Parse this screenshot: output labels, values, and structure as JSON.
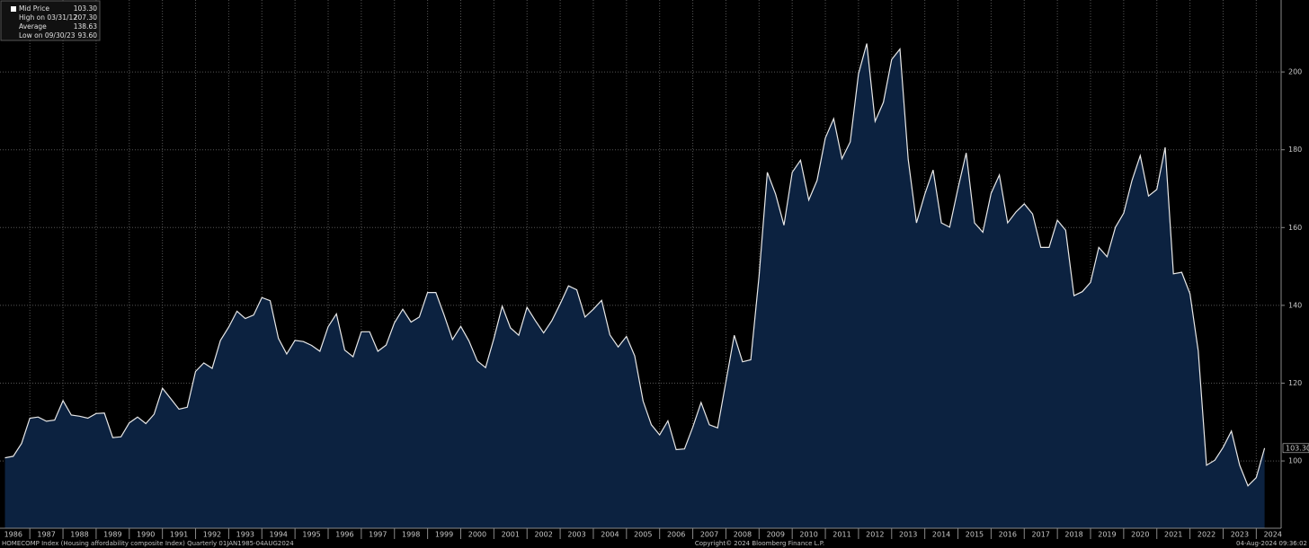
{
  "chart_data": {
    "type": "area",
    "stats": [
      {
        "label": "Mid Price",
        "value": "103.30"
      },
      {
        "label": "High on 03/31/12",
        "value": "207.30"
      },
      {
        "label": "Average",
        "value": "138.63"
      },
      {
        "label": "Low on 09/30/23",
        "value": "93.60"
      }
    ],
    "footer_left": "HOMECOMP Index (Housing affordability composite Index)  Quarterly 01JAN1985-04AUG2024",
    "footer_center": "Copyright© 2024 Bloomberg Finance L.P.",
    "footer_right": "04-Aug-2024 09:36:02",
    "x": [
      1986.25,
      1986.5,
      1986.75,
      1987,
      1987.25,
      1987.5,
      1987.75,
      1988,
      1988.25,
      1988.5,
      1988.75,
      1989,
      1989.25,
      1989.5,
      1989.75,
      1990,
      1990.25,
      1990.5,
      1990.75,
      1991,
      1991.25,
      1991.5,
      1991.75,
      1992,
      1992.25,
      1992.5,
      1992.75,
      1993,
      1993.25,
      1993.5,
      1993.75,
      1994,
      1994.25,
      1994.5,
      1994.75,
      1995,
      1995.25,
      1995.5,
      1995.75,
      1996,
      1996.25,
      1996.5,
      1996.75,
      1997,
      1997.25,
      1997.5,
      1997.75,
      1998,
      1998.25,
      1998.5,
      1998.75,
      1999,
      1999.25,
      1999.5,
      1999.75,
      2000,
      2000.25,
      2000.5,
      2000.75,
      2001,
      2001.25,
      2001.5,
      2001.75,
      2002,
      2002.25,
      2002.5,
      2002.75,
      2003,
      2003.25,
      2003.5,
      2003.75,
      2004,
      2004.25,
      2004.5,
      2004.75,
      2005,
      2005.25,
      2005.5,
      2005.75,
      2006,
      2006.25,
      2006.5,
      2006.75,
      2007,
      2007.25,
      2007.5,
      2007.75,
      2008,
      2008.25,
      2008.5,
      2008.75,
      2009,
      2009.25,
      2009.5,
      2009.75,
      2010,
      2010.25,
      2010.5,
      2010.75,
      2011,
      2011.25,
      2011.5,
      2011.75,
      2012,
      2012.25,
      2012.5,
      2012.75,
      2013,
      2013.25,
      2013.5,
      2013.75,
      2014,
      2014.25,
      2014.5,
      2014.75,
      2015,
      2015.25,
      2015.5,
      2015.75,
      2016,
      2016.25,
      2016.5,
      2016.75,
      2017,
      2017.25,
      2017.5,
      2017.75,
      2018,
      2018.25,
      2018.5,
      2018.75,
      2019,
      2019.25,
      2019.5,
      2019.75,
      2020,
      2020.25,
      2020.5,
      2020.75,
      2021,
      2021.25,
      2021.5,
      2021.75,
      2022,
      2022.25,
      2022.5,
      2022.75,
      2023,
      2023.25,
      2023.5,
      2023.75,
      2024,
      2024.25
    ],
    "series": [
      {
        "name": "Mid Price",
        "color": "#e8e8e8",
        "fill": "#0c2240",
        "values": [
          100.8,
          101.2,
          104.5,
          111,
          111.3,
          110.2,
          110.5,
          115.5,
          111.8,
          111.5,
          111,
          112.2,
          112.3,
          106,
          106.2,
          109.8,
          111.3,
          109.6,
          112,
          118.7,
          116,
          113.3,
          113.8,
          123,
          125.2,
          123.8,
          131,
          134.4,
          138.5,
          136.6,
          137.5,
          142,
          141.2,
          131.5,
          127.5,
          131,
          130.7,
          129.7,
          128.2,
          134.5,
          137.8,
          128.5,
          126.8,
          133.2,
          133.2,
          128.2,
          129.8,
          135.5,
          139,
          135.7,
          137,
          143.3,
          143.3,
          137.5,
          131.2,
          134.6,
          130.8,
          125.7,
          124,
          131.5,
          139.8,
          134.2,
          132.3,
          139.5,
          136.1,
          132.9,
          136.1,
          140.4,
          145,
          144,
          137,
          139,
          141.3,
          132.4,
          129.3,
          132,
          127,
          115.4,
          109.3,
          106.7,
          110.3,
          102.9,
          103.1,
          108.7,
          115,
          109.3,
          108.5,
          120.3,
          132.3,
          125.5,
          126,
          147.5,
          174.2,
          168.6,
          160.6,
          174.2,
          177.3,
          167.1,
          172.1,
          183,
          188,
          177.7,
          182,
          199.5,
          207.3,
          187.3,
          192.2,
          203.2,
          205.9,
          177.5,
          161.2,
          168.6,
          174.8,
          161.2,
          160.1,
          170,
          179.2,
          161.2,
          158.8,
          168.8,
          173.5,
          161.2,
          164,
          166.1,
          163.5,
          154.9,
          154.9,
          161.9,
          159.3,
          142.5,
          143.5,
          145.9,
          154.9,
          152.5,
          160.1,
          163.7,
          172.1,
          178.5,
          168.1,
          169.8,
          180.6,
          148.1,
          148.5,
          143,
          128.3,
          98.9,
          100.2,
          103.5,
          107.7,
          98.9,
          93.6,
          95.7,
          103.3
        ]
      }
    ],
    "xlim": [
      1986.1,
      2024.75
    ],
    "xticks": [
      1986,
      1987,
      1988,
      1989,
      1990,
      1991,
      1992,
      1993,
      1994,
      1995,
      1996,
      1997,
      1998,
      1999,
      2000,
      2001,
      2002,
      2003,
      2004,
      2005,
      2006,
      2007,
      2008,
      2009,
      2010,
      2011,
      2012,
      2013,
      2014,
      2015,
      2016,
      2017,
      2018,
      2019,
      2020,
      2021,
      2022,
      2023,
      2024
    ],
    "ylim": [
      82.7,
      218.5
    ],
    "yticks": [
      100,
      120,
      140,
      160,
      180,
      200
    ],
    "grid": true
  }
}
